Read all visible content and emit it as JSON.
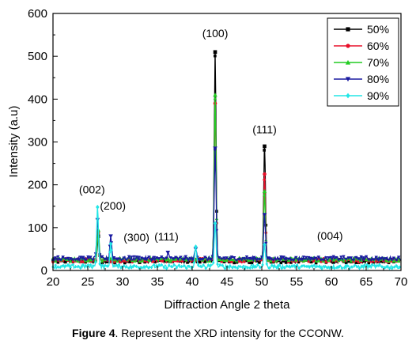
{
  "chart_data": {
    "type": "line",
    "xlabel": "Diffraction  Angle 2 theta",
    "ylabel": "Intensity (a.u)",
    "xlim": [
      20,
      70
    ],
    "ylim": [
      0,
      600
    ],
    "x_ticks": [
      20,
      25,
      30,
      35,
      40,
      45,
      50,
      55,
      60,
      65,
      70
    ],
    "y_ticks": [
      0,
      100,
      200,
      300,
      400,
      500,
      600
    ],
    "grid": false,
    "legend_position": "top-right",
    "series": [
      {
        "name": "50%",
        "color": "#000000",
        "marker": "square",
        "baseline": 22,
        "peaks": [
          [
            26.5,
            80
          ],
          [
            43.3,
            510
          ],
          [
            50.4,
            290
          ]
        ]
      },
      {
        "name": "60%",
        "color": "#e8102a",
        "marker": "circle",
        "baseline": 24,
        "peaks": [
          [
            26.5,
            88
          ],
          [
            43.3,
            390
          ],
          [
            50.4,
            225
          ]
        ]
      },
      {
        "name": "70%",
        "color": "#22cc22",
        "marker": "triangle-up",
        "baseline": 26,
        "peaks": [
          [
            26.5,
            95
          ],
          [
            43.3,
            410
          ],
          [
            50.4,
            185
          ]
        ]
      },
      {
        "name": "80%",
        "color": "#1a1aa0",
        "marker": "triangle-down",
        "baseline": 28,
        "peaks": [
          [
            26.4,
            118
          ],
          [
            28.3,
            80
          ],
          [
            36.5,
            42
          ],
          [
            40.5,
            50
          ],
          [
            43.3,
            285
          ],
          [
            50.4,
            130
          ]
        ]
      },
      {
        "name": "90%",
        "color": "#22e6e6",
        "marker": "diamond",
        "baseline": 9,
        "peaks": [
          [
            26.4,
            148
          ],
          [
            28.3,
            62
          ],
          [
            40.5,
            55
          ],
          [
            43.3,
            110
          ],
          [
            50.4,
            60
          ]
        ]
      }
    ],
    "annotations": [
      {
        "text": "(100)",
        "x": 43.3,
        "y": 545
      },
      {
        "text": "(111)",
        "x": 50.4,
        "y": 320
      },
      {
        "text": "(002)",
        "x": 25.6,
        "y": 180
      },
      {
        "text": "(200)",
        "x": 28.6,
        "y": 142
      },
      {
        "text": "(300)",
        "x": 32.0,
        "y": 68
      },
      {
        "text": "(111)",
        "x": 36.3,
        "y": 70
      },
      {
        "text": "(004)",
        "x": 59.8,
        "y": 72
      }
    ]
  },
  "caption": {
    "label": "Figure 4",
    "text": ". Represent the XRD intensity for the CCONW."
  }
}
